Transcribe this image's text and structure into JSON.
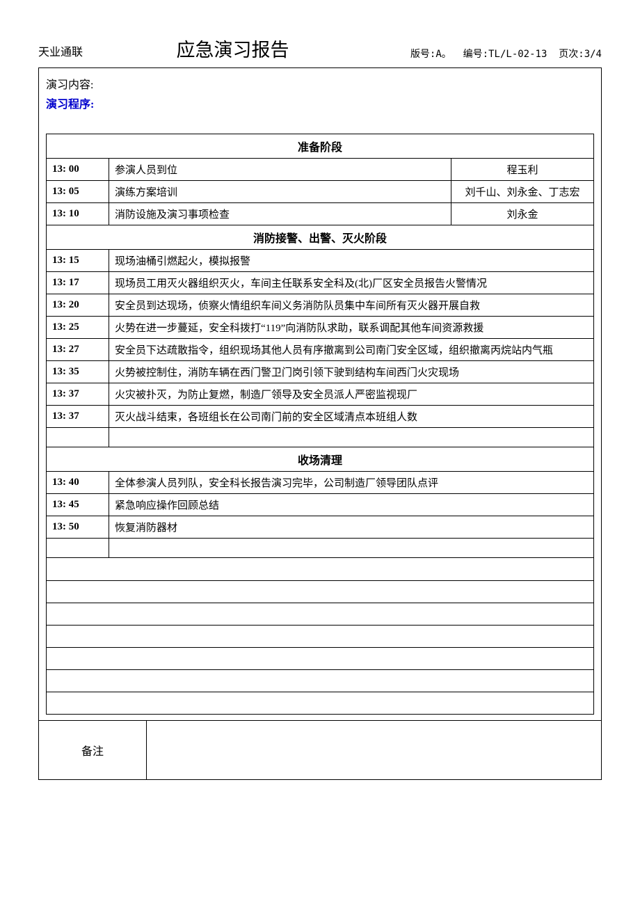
{
  "header": {
    "company": "天业通联",
    "title": "应急演习报告",
    "version_label": "版号:",
    "version": "A。",
    "code_label": "编号:",
    "code": "TL/L-02-13",
    "page_label": "页次:",
    "page": "3/4"
  },
  "labels": {
    "content": "演习内容:",
    "program": "演习程序:",
    "remark": "备注"
  },
  "sections": {
    "prep": "准备阶段",
    "fire": "消防接警、出警、灭火阶段",
    "cleanup": "收场清理"
  },
  "prep_rows": [
    {
      "time": "13: 00",
      "desc": "参演人员到位",
      "person": "程玉利"
    },
    {
      "time": "13: 05",
      "desc": "演练方案培训",
      "person": "刘千山、刘永金、丁志宏"
    },
    {
      "time": "13: 10",
      "desc": "消防设施及演习事项检查",
      "person": "刘永金"
    }
  ],
  "fire_rows": [
    {
      "time": "13: 15",
      "desc": "现场油桶引燃起火，模拟报警"
    },
    {
      "time": "13: 17",
      "desc": "现场员工用灭火器组织灭火，车间主任联系安全科及(北)厂区安全员报告火警情况"
    },
    {
      "time": "13: 20",
      "desc": "安全员到达现场，侦察火情组织车间义务消防队员集中车间所有灭火器开展自救"
    },
    {
      "time": "13: 25",
      "desc": "火势在进一步蔓延，安全科拨打“119”向消防队求助，联系调配其他车间资源救援"
    },
    {
      "time": "13: 27",
      "desc": "安全员下达疏散指令，组织现场其他人员有序撤离到公司南门安全区域，组织撤离丙烷站内气瓶"
    },
    {
      "time": "13: 35",
      "desc": "火势被控制住，消防车辆在西门警卫门岗引领下驶到结构车间西门火灾现场"
    },
    {
      "time": "13: 37",
      "desc": "火灾被扑灭，为防止复燃，制造厂领导及安全员派人严密监视现厂"
    },
    {
      "time": "13: 37",
      "desc": "灭火战斗结束，各班组长在公司南门前的安全区域清点本班组人数"
    }
  ],
  "cleanup_rows": [
    {
      "time": "13: 40",
      "desc": "全体参演人员列队，安全科长报告演习完毕，公司制造厂领导团队点评"
    },
    {
      "time": "13: 45",
      "desc": "紧急响应操作回顾总结"
    },
    {
      "time": "13: 50",
      "desc": "恢复消防器材"
    }
  ],
  "style": {
    "accent_color": "#0000cc",
    "border_color": "#000000",
    "background": "#ffffff",
    "text_color": "#000000"
  }
}
